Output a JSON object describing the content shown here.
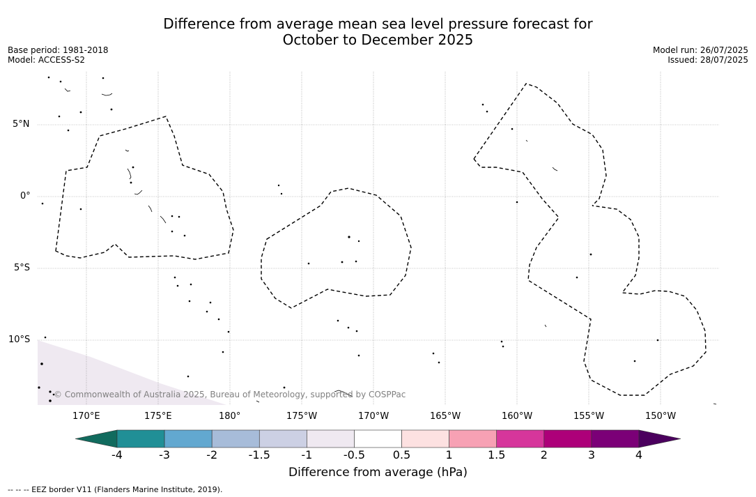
{
  "title": {
    "line1": "Difference from average mean sea level pressure forecast for",
    "line2": "October to December 2025"
  },
  "meta_left": {
    "base_period": "Base period: 1981-2018",
    "model": "Model: ACCESS-S2"
  },
  "meta_right": {
    "model_run": "Model run: 26/07/2025",
    "issued": "Issued: 28/07/2025"
  },
  "copyright": "© Commonwealth of Australia 2025, Bureau of Meteorology, supported by COSPPac",
  "map": {
    "lat_labels": [
      "5°N",
      "0°",
      "5°S",
      "10°S"
    ],
    "lon_labels": [
      "170°E",
      "175°E",
      "180°",
      "175°W",
      "170°W",
      "165°W",
      "160°W",
      "155°W",
      "150°W"
    ],
    "shaded_value": -1
  },
  "colorbar": {
    "title": "Difference from average (hPa)",
    "boundaries": [
      "-4",
      "-3",
      "-2",
      "-1.5",
      "-1",
      "-0.5",
      "0.5",
      "1",
      "1.5",
      "2",
      "3",
      "4"
    ],
    "colors": [
      "#116b5e",
      "#208f96",
      "#62a8d0",
      "#a7bcd9",
      "#ccd0e4",
      "#efe9f1",
      "#ffffff",
      "#fde1e1",
      "#f7a1b4",
      "#d6369b",
      "#ad0079",
      "#7b0077",
      "#4b005e"
    ]
  },
  "legend_note": "-- -- -- EEZ border V11 (Flanders Marine Institute, 2019)."
}
